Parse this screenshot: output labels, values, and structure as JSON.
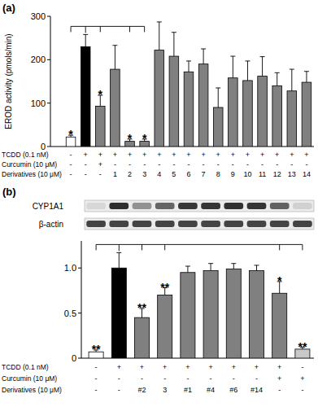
{
  "chart_data": [
    {
      "type": "bar",
      "title": "(a)",
      "y_label": "EROD activity (pmols/min)",
      "categories": [
        null,
        null,
        null,
        null,
        null,
        null,
        null,
        null,
        null,
        null,
        null,
        null,
        null,
        null,
        null,
        null,
        null
      ],
      "values": [
        22,
        230,
        93,
        178,
        12,
        12,
        222,
        208,
        172,
        190,
        90,
        158,
        152,
        162,
        140,
        128,
        148
      ],
      "errors": [
        4,
        28,
        25,
        55,
        5,
        5,
        65,
        55,
        25,
        35,
        45,
        50,
        45,
        45,
        30,
        50,
        25
      ],
      "colors": [
        "#ffffff",
        "#000000",
        "#808080",
        "#808080",
        "#808080",
        "#808080",
        "#808080",
        "#808080",
        "#808080",
        "#808080",
        "#808080",
        "#808080",
        "#808080",
        "#808080",
        "#808080",
        "#808080",
        "#808080"
      ],
      "significance": [
        "*",
        null,
        "*",
        null,
        "*",
        "*",
        null,
        null,
        null,
        null,
        null,
        null,
        null,
        null,
        null,
        null,
        null
      ],
      "ylim": [
        0,
        300
      ],
      "yticks": [
        0,
        100,
        200,
        300
      ],
      "treatments": [
        {
          "label": "TCDD (0.1 nM)",
          "values": [
            "-",
            "+",
            "+",
            "+",
            "+",
            "+",
            "+",
            "+",
            "+",
            "+",
            "+",
            "+",
            "+",
            "+",
            "+",
            "+",
            "+"
          ]
        },
        {
          "label": "Curcumin (10 μM)",
          "values": [
            "-",
            "-",
            "+",
            "-",
            "-",
            "-",
            "-",
            "-",
            "-",
            "-",
            "-",
            "-",
            "-",
            "-",
            "-",
            "-",
            "-"
          ]
        },
        {
          "label": "Derivatives (10 μM)",
          "values": [
            "-",
            "-",
            "-",
            "1",
            "2",
            "3",
            "4",
            "5",
            "6",
            "7",
            "8",
            "9",
            "10",
            "11",
            "12",
            "13",
            "14"
          ]
        }
      ]
    },
    {
      "type": "bar",
      "title": "(b)",
      "blot_rows": [
        "CYP1A1",
        "β-actin"
      ],
      "categories": [
        null,
        null,
        null,
        null,
        null,
        null,
        null,
        null,
        null,
        null
      ],
      "values": [
        0.07,
        1,
        0.45,
        0.7,
        0.95,
        0.97,
        0.99,
        0.97,
        0.72,
        0.1
      ],
      "errors": [
        0.02,
        0.17,
        0.1,
        0.08,
        0.07,
        0.08,
        0.06,
        0.06,
        0.13,
        0.02
      ],
      "colors": [
        "#ffffff",
        "#000000",
        "#808080",
        "#808080",
        "#808080",
        "#808080",
        "#808080",
        "#808080",
        "#808080",
        "#c8c8c8"
      ],
      "significance": [
        "**",
        null,
        "**",
        "**",
        null,
        null,
        null,
        null,
        "*",
        "**"
      ],
      "ylim": [
        0,
        1.3
      ],
      "yticks": [
        0,
        0.5,
        {
          "value": 1,
          "label": "1.0"
        }
      ],
      "treatments": [
        {
          "label": "TCDD (0.1 nM)",
          "values": [
            "-",
            "+",
            "+",
            "+",
            "+",
            "+",
            "+",
            "+",
            "+",
            "-"
          ]
        },
        {
          "label": "Curcumin (10 μM)",
          "values": [
            "-",
            "-",
            "-",
            "-",
            "-",
            "-",
            "-",
            "-",
            "+",
            "+"
          ]
        },
        {
          "label": "Derivatives (10 μM)",
          "values": [
            "-",
            "-",
            "#2",
            "3",
            "#1",
            "#4",
            "#6",
            "#14",
            "-",
            "-"
          ]
        }
      ]
    }
  ]
}
